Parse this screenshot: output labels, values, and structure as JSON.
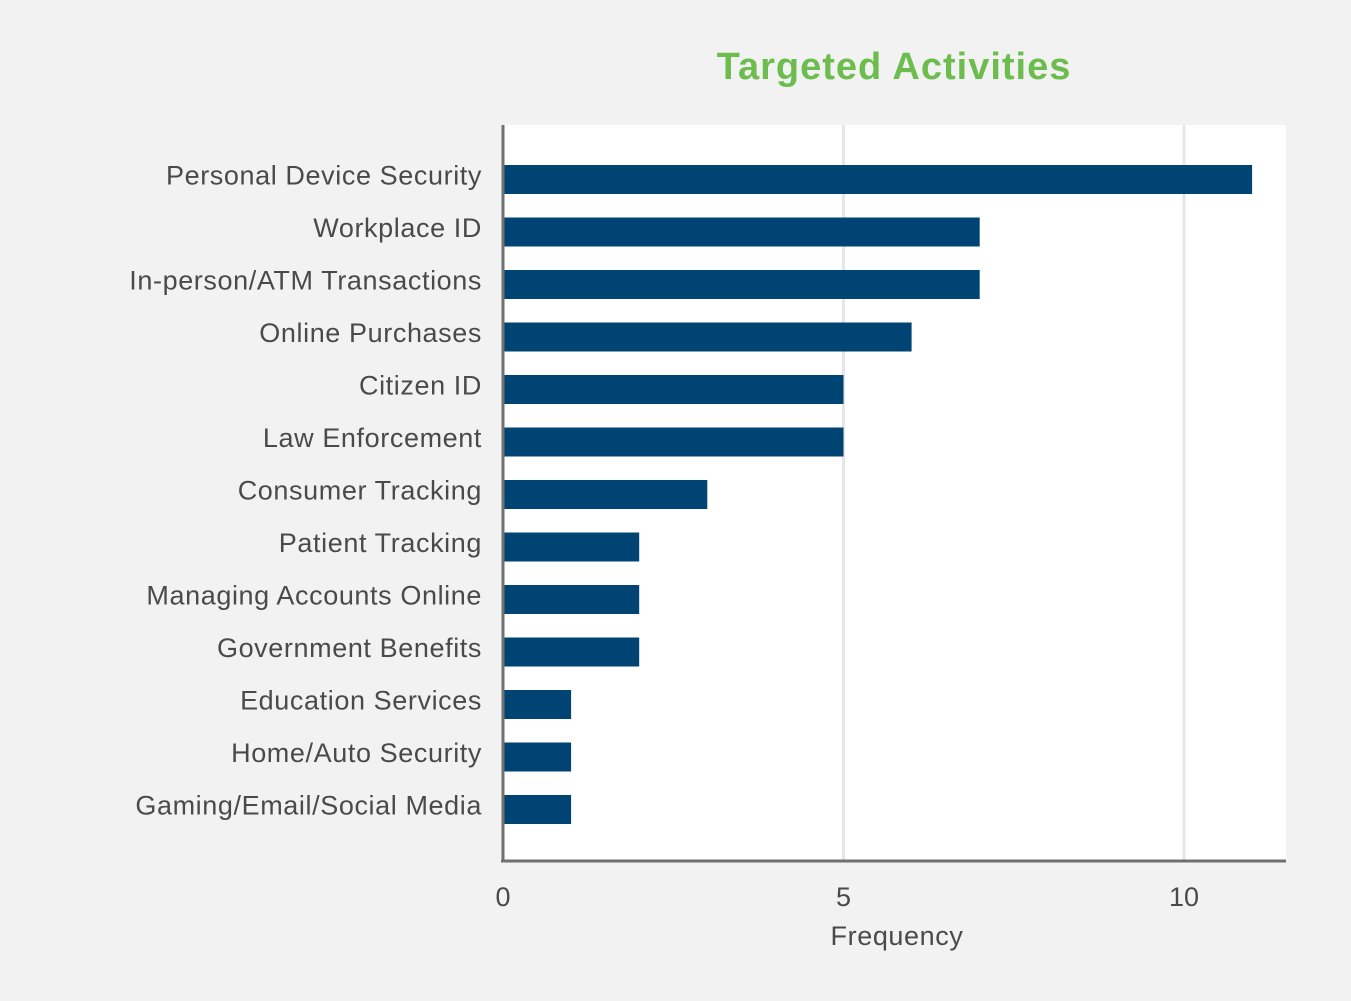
{
  "chart_data": {
    "type": "bar",
    "orientation": "horizontal",
    "title": "Targeted Activities",
    "xlabel": "Frequency",
    "ylabel": "",
    "categories": [
      "Personal Device Security",
      "Workplace ID",
      "In-person/ATM Transactions",
      "Online Purchases",
      "Citizen ID",
      "Law Enforcement",
      "Consumer Tracking",
      "Patient Tracking",
      "Managing Accounts Online",
      "Government Benefits",
      "Education Services",
      "Home/Auto Security",
      "Gaming/Email/Social Media"
    ],
    "values": [
      11,
      7,
      7,
      6,
      5,
      5,
      3,
      2,
      2,
      2,
      1,
      1,
      1
    ],
    "xlim": [
      0,
      11.5
    ],
    "xticks": [
      0,
      5,
      10
    ],
    "xtick_labels": [
      "0",
      "5",
      "10"
    ],
    "grid": true,
    "legend": "none"
  },
  "colors": {
    "bar": "#004473",
    "title": "#6cbd4e",
    "grid": "#e6e6e6",
    "axis": "#707070",
    "plot_background": "#ffffff",
    "page_background": "#f2f2f2"
  }
}
